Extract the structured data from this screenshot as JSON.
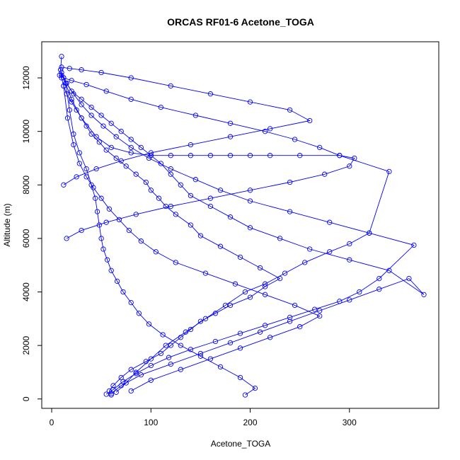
{
  "chart_data": {
    "type": "scatter",
    "title": "ORCAS RF01-6 Acetone_TOGA",
    "xlabel": "Acetone_TOGA",
    "ylabel": "Altitude (m)",
    "xlim": [
      -10,
      390
    ],
    "ylim": [
      -350,
      13350
    ],
    "x_ticks": [
      0,
      100,
      200,
      300
    ],
    "y_ticks": [
      0,
      2000,
      4000,
      6000,
      8000,
      10000,
      12000
    ],
    "x_tick_labels": [
      "0",
      "100",
      "200",
      "300"
    ],
    "y_tick_labels": [
      "0",
      "2000",
      "4000",
      "6000",
      "8000",
      "10000",
      "12000"
    ],
    "grid": false,
    "legend": "none",
    "series_color": "#0000ff",
    "marker": "open-circle",
    "connect_points": true,
    "series": [
      {
        "x": [
          60,
          58,
          62,
          70,
          80,
          95,
          110,
          120,
          130,
          140,
          150,
          165,
          180,
          200,
          215,
          230,
          210,
          190,
          170,
          150,
          140,
          125,
          115,
          108,
          100,
          95,
          85,
          75,
          65,
          55,
          48,
          40,
          35,
          30,
          25,
          20,
          15,
          12,
          10,
          9,
          10
        ],
        "y": [
          150,
          300,
          500,
          800,
          1100,
          1400,
          1700,
          2000,
          2300,
          2600,
          2900,
          3200,
          3500,
          3800,
          4200,
          4500,
          4900,
          5300,
          5700,
          6100,
          6500,
          6900,
          7200,
          7500,
          7800,
          8100,
          8400,
          8700,
          9000,
          9300,
          9600,
          9900,
          10200,
          10500,
          10800,
          11100,
          11400,
          11700,
          12000,
          12300,
          12800
        ]
      },
      {
        "x": [
          60,
          70,
          90,
          120,
          150,
          180,
          210,
          240,
          270,
          300,
          330,
          360,
          375,
          340,
          300,
          260,
          230,
          200,
          180,
          160,
          140,
          130,
          120,
          110,
          100,
          90,
          80,
          70,
          60,
          50,
          40,
          30,
          20,
          15,
          10
        ],
        "y": [
          200,
          500,
          900,
          1300,
          1700,
          2100,
          2500,
          2900,
          3300,
          3700,
          4100,
          4500,
          3900,
          4800,
          5200,
          5600,
          6000,
          6400,
          6800,
          7200,
          7600,
          8000,
          8400,
          8800,
          9100,
          9400,
          9700,
          10000,
          10300,
          10600,
          10900,
          11200,
          11500,
          11800,
          12100
        ]
      },
      {
        "x": [
          65,
          75,
          85,
          100,
          115,
          135,
          155,
          175,
          195,
          215,
          235,
          255,
          280,
          300,
          320,
          340,
          290,
          250,
          220,
          200,
          180,
          160,
          140,
          120,
          100,
          80,
          60,
          45,
          30,
          20,
          12
        ],
        "y": [
          250,
          600,
          1000,
          1500,
          2000,
          2500,
          3000,
          3500,
          4000,
          4300,
          4700,
          5100,
          5500,
          5800,
          6200,
          8500,
          9100,
          9100,
          9100,
          9100,
          9100,
          9100,
          9100,
          9100,
          9100,
          9200,
          9400,
          9800,
          10500,
          11200,
          12000
        ]
      },
      {
        "x": [
          195,
          205,
          190,
          170,
          150,
          130,
          112,
          98,
          88,
          80,
          72,
          66,
          60,
          56,
          52,
          50,
          48,
          46,
          44,
          40,
          35,
          28,
          22,
          18,
          14
        ],
        "y": [
          150,
          400,
          800,
          1200,
          1600,
          2000,
          2400,
          2800,
          3200,
          3600,
          4000,
          4400,
          4800,
          5200,
          5600,
          6000,
          6500,
          7000,
          7500,
          8000,
          8600,
          9200,
          9900,
          10800,
          11800
        ]
      },
      {
        "x": [
          80,
          100,
          130,
          160,
          190,
          220,
          250,
          270,
          245,
          215,
          185,
          155,
          125,
          105,
          90,
          78,
          68,
          58,
          50,
          42,
          35,
          28,
          22,
          16,
          12
        ],
        "y": [
          300,
          700,
          1100,
          1500,
          1900,
          2300,
          2700,
          3100,
          3500,
          3900,
          4300,
          4700,
          5100,
          5500,
          5900,
          6300,
          6700,
          7100,
          7500,
          7900,
          8300,
          8800,
          9500,
          10500,
          11700
        ]
      },
      {
        "x": [
          55,
          62,
          72,
          85,
          100,
          118,
          140,
          165,
          190,
          215,
          240,
          265,
          290,
          310,
          330,
          365,
          320,
          280,
          240,
          200,
          170,
          145,
          120,
          98,
          80,
          65,
          52,
          40,
          30,
          22,
          15,
          10
        ],
        "y": [
          180,
          350,
          650,
          950,
          1250,
          1550,
          1850,
          2150,
          2450,
          2750,
          3050,
          3350,
          3650,
          4000,
          4500,
          5750,
          6200,
          6600,
          7000,
          7400,
          7800,
          8200,
          8600,
          9000,
          9400,
          9800,
          10200,
          10600,
          11000,
          11400,
          11800,
          12200
        ]
      },
      {
        "x": [
          10,
          18,
          30,
          50,
          80,
          120,
          160,
          200,
          240,
          260,
          220,
          180,
          140,
          100,
          70,
          45,
          25,
          12
        ],
        "y": [
          12400,
          12350,
          12300,
          12200,
          12000,
          11700,
          11400,
          11100,
          10800,
          10400,
          10100,
          9800,
          9500,
          9200,
          8900,
          8600,
          8300,
          8000
        ]
      },
      {
        "x": [
          8,
          12,
          20,
          35,
          55,
          80,
          110,
          145,
          180,
          215,
          245,
          270,
          290,
          305,
          300,
          275,
          240,
          200,
          160,
          120,
          85,
          55,
          30,
          15
        ],
        "y": [
          12100,
          12000,
          11900,
          11750,
          11500,
          11200,
          10900,
          10600,
          10300,
          10000,
          9700,
          9400,
          9100,
          9000,
          8700,
          8400,
          8100,
          7800,
          7500,
          7200,
          6900,
          6600,
          6300,
          6000
        ]
      }
    ]
  }
}
